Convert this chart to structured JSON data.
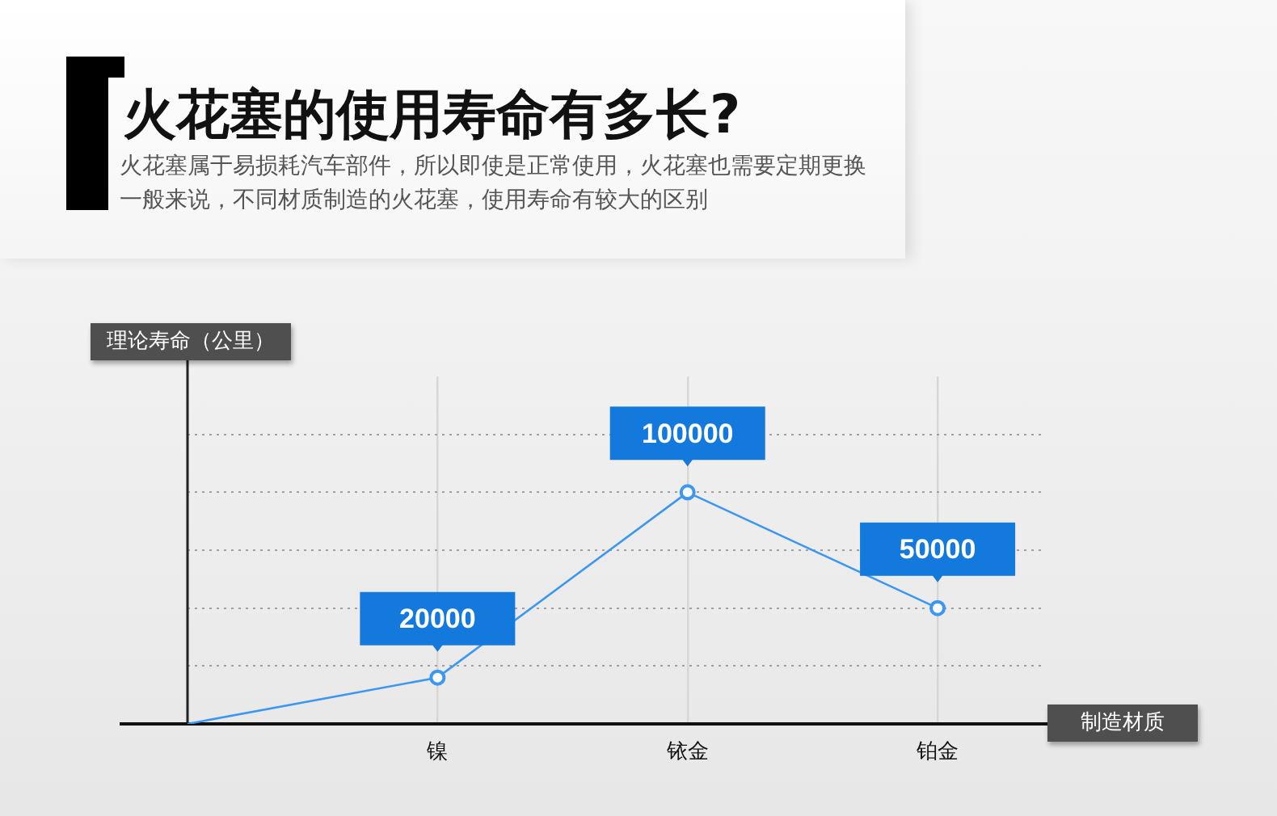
{
  "chart_data": {
    "type": "line",
    "title": "火花塞的使用寿命有多长?",
    "subtitle": "火花塞属于易损耗汽车部件，所以即使是正常使用，火花塞也需要定期更换一般来说，不同材质制造的火花塞，使用寿命有较大的区别",
    "xlabel": "制造材质",
    "ylabel": "理论寿命（公里）",
    "categories": [
      null,
      "镍",
      "铱金",
      "铂金"
    ],
    "series": [
      {
        "color": "#3d97ef",
        "values": [
          0,
          20000,
          100000,
          50000
        ],
        "value_labels": [
          null,
          "20000",
          "100000",
          "50000"
        ]
      }
    ],
    "ylim": [
      0,
      150000
    ],
    "yticks": [
      {
        "value": 25000,
        "label": null
      },
      {
        "value": 50000,
        "label": null
      },
      {
        "value": 75000,
        "label": null
      },
      {
        "value": 100000,
        "label": null
      },
      {
        "value": 125000,
        "label": null
      }
    ],
    "tick_labels": "x",
    "grid": true,
    "legend": false,
    "marker": "circle",
    "line_style": "solid"
  }
}
